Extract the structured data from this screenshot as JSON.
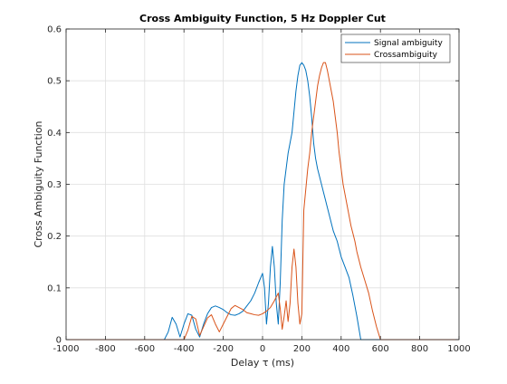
{
  "chart_data": {
    "type": "line",
    "title": "Cross Ambiguity Function, 5 Hz Doppler Cut",
    "xlabel": "Delay τ (ms)",
    "ylabel": "Cross Ambiguity Function",
    "xlim": [
      -1000,
      1000
    ],
    "ylim": [
      0,
      0.6
    ],
    "xticks": [
      "-1000",
      "-800",
      "-600",
      "-400",
      "-200",
      "0",
      "200",
      "400",
      "600",
      "800",
      "1000"
    ],
    "yticks": [
      "0",
      "0.1",
      "0.2",
      "0.3",
      "0.4",
      "0.5",
      "0.6"
    ],
    "grid": true,
    "legend_position": "top-right",
    "series": [
      {
        "name": "Signal ambiguity",
        "color": "#0072BD",
        "x": [
          -1000,
          -500,
          -480,
          -460,
          -440,
          -420,
          -400,
          -380,
          -360,
          -340,
          -320,
          -300,
          -280,
          -260,
          -240,
          -220,
          -200,
          -180,
          -160,
          -140,
          -120,
          -100,
          -80,
          -60,
          -40,
          -20,
          0,
          10,
          20,
          30,
          40,
          50,
          60,
          70,
          80,
          90,
          100,
          110,
          120,
          130,
          140,
          150,
          160,
          170,
          180,
          190,
          200,
          210,
          220,
          230,
          240,
          250,
          260,
          270,
          280,
          290,
          300,
          310,
          320,
          330,
          340,
          350,
          360,
          370,
          380,
          390,
          400,
          420,
          440,
          460,
          480,
          500,
          1000
        ],
        "y": [
          0,
          0,
          0.015,
          0.043,
          0.03,
          0.005,
          0.03,
          0.05,
          0.047,
          0.02,
          0.005,
          0.03,
          0.05,
          0.062,
          0.065,
          0.062,
          0.058,
          0.052,
          0.048,
          0.047,
          0.05,
          0.055,
          0.065,
          0.075,
          0.09,
          0.11,
          0.128,
          0.1,
          0.03,
          0.07,
          0.14,
          0.18,
          0.14,
          0.07,
          0.03,
          0.11,
          0.23,
          0.3,
          0.33,
          0.36,
          0.38,
          0.4,
          0.44,
          0.48,
          0.51,
          0.53,
          0.535,
          0.53,
          0.52,
          0.5,
          0.47,
          0.43,
          0.38,
          0.35,
          0.33,
          0.315,
          0.3,
          0.285,
          0.27,
          0.255,
          0.24,
          0.225,
          0.21,
          0.2,
          0.19,
          0.175,
          0.16,
          0.14,
          0.12,
          0.085,
          0.045,
          0.0,
          0
        ]
      },
      {
        "name": "Crossambiguity",
        "color": "#D95319",
        "x": [
          -1000,
          -400,
          -380,
          -360,
          -340,
          -320,
          -300,
          -280,
          -260,
          -240,
          -220,
          -200,
          -180,
          -160,
          -140,
          -120,
          -100,
          -80,
          -60,
          -40,
          -20,
          0,
          20,
          40,
          60,
          80,
          90,
          100,
          110,
          120,
          130,
          140,
          150,
          160,
          170,
          180,
          190,
          200,
          210,
          220,
          230,
          240,
          250,
          260,
          270,
          280,
          290,
          300,
          310,
          320,
          330,
          340,
          350,
          360,
          370,
          380,
          390,
          400,
          410,
          420,
          430,
          440,
          450,
          460,
          470,
          480,
          490,
          500,
          520,
          540,
          560,
          580,
          600,
          1000
        ],
        "y": [
          0,
          0,
          0.018,
          0.045,
          0.04,
          0.008,
          0.025,
          0.042,
          0.048,
          0.03,
          0.015,
          0.03,
          0.045,
          0.06,
          0.066,
          0.062,
          0.058,
          0.052,
          0.05,
          0.048,
          0.047,
          0.05,
          0.055,
          0.062,
          0.075,
          0.09,
          0.06,
          0.02,
          0.045,
          0.075,
          0.035,
          0.07,
          0.14,
          0.175,
          0.14,
          0.07,
          0.03,
          0.05,
          0.25,
          0.29,
          0.33,
          0.36,
          0.4,
          0.43,
          0.46,
          0.49,
          0.51,
          0.525,
          0.535,
          0.535,
          0.52,
          0.5,
          0.48,
          0.46,
          0.43,
          0.4,
          0.36,
          0.33,
          0.3,
          0.28,
          0.26,
          0.24,
          0.22,
          0.205,
          0.19,
          0.17,
          0.155,
          0.14,
          0.115,
          0.09,
          0.055,
          0.025,
          0.0,
          0
        ]
      }
    ]
  }
}
